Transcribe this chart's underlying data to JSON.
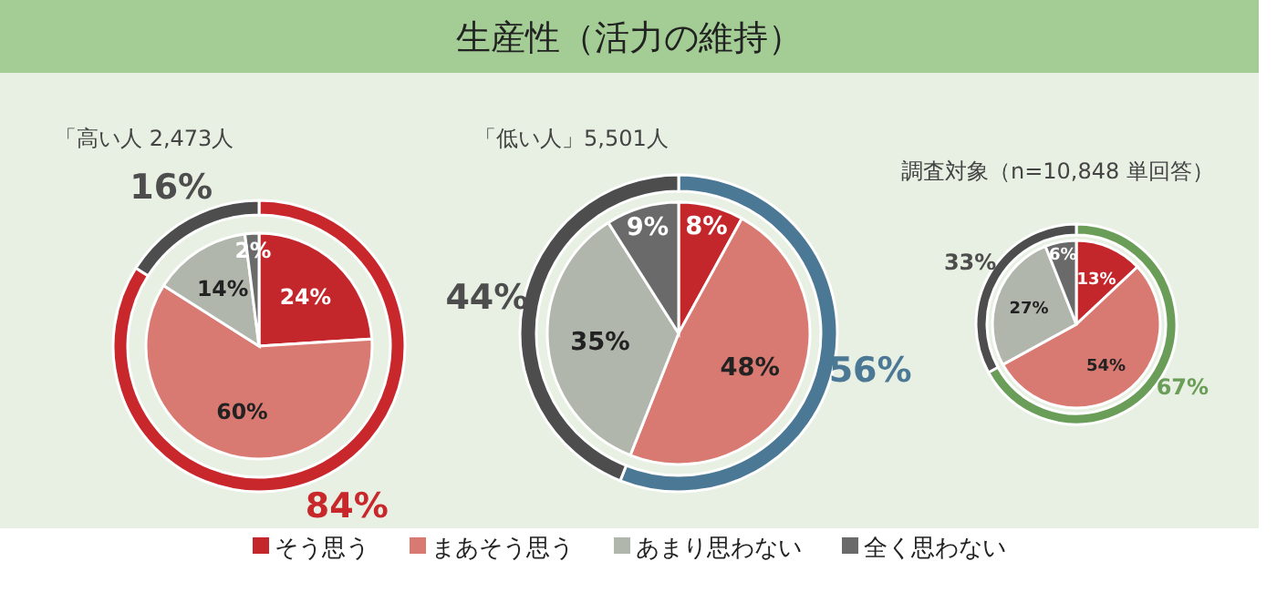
{
  "chart_data": [
    {
      "type": "other",
      "title": "生産性（活力の維持）"
    },
    {
      "type": "pie",
      "subtitle": "「高い人 2,473人",
      "legend": "bottom",
      "categories": [
        "そう思う",
        "まあそう思う",
        "あまり思わない",
        "全く思わない"
      ],
      "values": [
        24,
        60,
        14,
        2
      ],
      "value_labels": [
        "24%",
        "60%",
        "14%",
        "2%"
      ],
      "colors": [
        "#c4272b",
        "#d97a72",
        "#b1b6ad",
        "#6a6a6a"
      ]
    },
    {
      "type": "donut",
      "categories": [
        null,
        null
      ],
      "values": [
        84,
        16
      ],
      "value_labels": [
        "84%",
        "16%"
      ],
      "colors": [
        "#c8282c",
        "#4d4d4d"
      ]
    },
    {
      "type": "pie",
      "subtitle": "「低い人」5,501人",
      "values": [
        8,
        48,
        35,
        9
      ],
      "value_labels": [
        "8%",
        "48%",
        "35%",
        "9%"
      ],
      "colors": [
        "#c4272b",
        "#d97a72",
        "#b1b6ad",
        "#6a6a6a"
      ]
    },
    {
      "type": "donut",
      "categories": [
        null,
        null
      ],
      "values": [
        56,
        44
      ],
      "value_labels": [
        "56%",
        "44%"
      ],
      "colors": [
        "#4a7895",
        "#4d4d4d"
      ]
    },
    {
      "type": "pie",
      "subtitle": "調査対象（n=10,848 単回答）",
      "values": [
        13,
        54,
        27,
        6
      ],
      "value_labels": [
        "13%",
        "54%",
        "27%",
        "6%"
      ],
      "colors": [
        "#c4272b",
        "#d97a72",
        "#b1b6ad",
        "#6a6a6a"
      ]
    },
    {
      "type": "donut",
      "categories": [
        null,
        null
      ],
      "values": [
        67,
        33
      ],
      "value_labels": [
        "67%",
        "33%"
      ],
      "colors": [
        "#6a9e58",
        "#4d4d4d"
      ]
    }
  ]
}
